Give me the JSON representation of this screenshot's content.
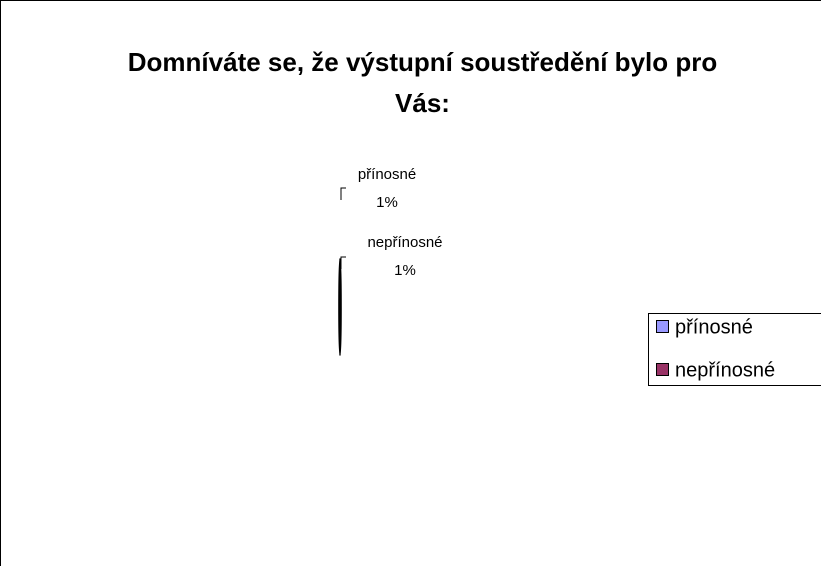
{
  "chart_data": {
    "type": "pie",
    "title": "Domníváte se, že výstupní soustředění bylo pro Vás:",
    "categories": [
      "přínosné",
      "nepřínosné"
    ],
    "values": [
      1,
      1
    ],
    "value_labels": [
      "1%",
      "1%"
    ],
    "colors": [
      "#9999ff",
      "#993366"
    ],
    "legend": "right"
  }
}
